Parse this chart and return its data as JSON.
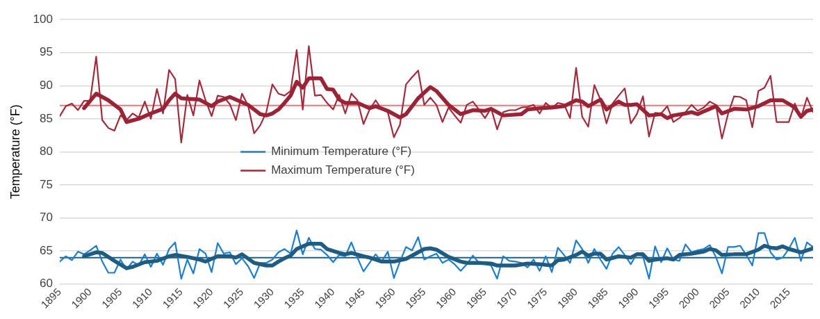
{
  "chart_data": {
    "type": "line",
    "ylabel": "Temperature (°F)",
    "x": [
      1895,
      1896,
      1897,
      1898,
      1899,
      1900,
      1901,
      1902,
      1903,
      1904,
      1905,
      1906,
      1907,
      1908,
      1909,
      1910,
      1911,
      1912,
      1913,
      1914,
      1915,
      1916,
      1917,
      1918,
      1919,
      1920,
      1921,
      1922,
      1923,
      1924,
      1925,
      1926,
      1927,
      1928,
      1929,
      1930,
      1931,
      1932,
      1933,
      1934,
      1935,
      1936,
      1937,
      1938,
      1939,
      1940,
      1941,
      1942,
      1943,
      1944,
      1945,
      1946,
      1947,
      1948,
      1949,
      1950,
      1951,
      1952,
      1953,
      1954,
      1955,
      1956,
      1957,
      1958,
      1959,
      1960,
      1961,
      1962,
      1963,
      1964,
      1965,
      1966,
      1967,
      1968,
      1969,
      1970,
      1971,
      1972,
      1973,
      1974,
      1975,
      1976,
      1977,
      1978,
      1979,
      1980,
      1981,
      1982,
      1983,
      1984,
      1985,
      1986,
      1987,
      1988,
      1989,
      1990,
      1991,
      1992,
      1993,
      1994,
      1995,
      1996,
      1997,
      1998,
      1999,
      2000,
      2001,
      2002,
      2003,
      2004,
      2005,
      2006,
      2007,
      2008,
      2009,
      2010,
      2011,
      2012,
      2013,
      2014,
      2015,
      2016,
      2017,
      2018,
      2019
    ],
    "xlim": [
      1895,
      2019
    ],
    "xticks": [
      1895,
      1900,
      1905,
      1910,
      1915,
      1920,
      1925,
      1930,
      1935,
      1940,
      1945,
      1950,
      1955,
      1960,
      1965,
      1970,
      1975,
      1980,
      1985,
      1990,
      1995,
      2000,
      2005,
      2010,
      2015
    ],
    "ylim": [
      60,
      100
    ],
    "yticks": [
      60,
      65,
      70,
      75,
      80,
      85,
      90,
      95,
      100
    ],
    "grid": "y",
    "legend": "left",
    "marker": "none",
    "line_style": "solid",
    "ref_lines": [
      {
        "axis": "y",
        "value": 87,
        "color": "#e8787a"
      },
      {
        "axis": "y",
        "value": 64,
        "color": "#1f5f7f"
      }
    ],
    "series": [
      {
        "name": "Minimum Temperature (°F)",
        "color": "#1a7fd0",
        "values": [
          63.4,
          64.2,
          63.6,
          64.9,
          64.5,
          65.1,
          65.8,
          63.4,
          61.7,
          61.7,
          63.7,
          62.2,
          63.4,
          62.8,
          64.5,
          62.6,
          64.6,
          62.9,
          65.3,
          66.3,
          60.8,
          63.7,
          61.6,
          65.3,
          64.6,
          61.8,
          66.2,
          64.6,
          64.8,
          63.0,
          63.9,
          62.7,
          60.9,
          63.2,
          63.2,
          63.7,
          64.8,
          65.3,
          64.6,
          68.1,
          64.5,
          67.0,
          65.3,
          65.2,
          64.4,
          63.3,
          64.4,
          64.2,
          66.3,
          64.0,
          61.9,
          63.2,
          64.5,
          63.4,
          64.9,
          60.9,
          63.4,
          65.6,
          65.1,
          67.1,
          63.7,
          64.2,
          64.6,
          63.2,
          63.7,
          63.0,
          62.0,
          63.0,
          64.3,
          63.2,
          63.0,
          62.8,
          60.8,
          64.2,
          63.5,
          63.4,
          63.2,
          62.5,
          63.7,
          62.0,
          64.2,
          61.8,
          65.5,
          64.4,
          63.2,
          66.6,
          65.3,
          63.2,
          65.3,
          63.7,
          62.3,
          64.6,
          65.6,
          64.4,
          63.0,
          64.6,
          64.2,
          60.8,
          65.7,
          63.3,
          65.4,
          63.7,
          63.5,
          66.0,
          64.8,
          65.1,
          65.3,
          65.9,
          64.1,
          61.6,
          65.6,
          65.6,
          65.8,
          64.4,
          62.8,
          67.7,
          67.7,
          64.8,
          63.7,
          64.0,
          65.3,
          67.0,
          63.5,
          66.3,
          65.6
        ]
      },
      {
        "name": "Maximum Temperature (°F)",
        "color": "#a4293a",
        "values": [
          85.4,
          86.9,
          87.3,
          86.3,
          87.7,
          87.7,
          94.4,
          84.8,
          83.6,
          83.2,
          85.5,
          84.8,
          85.8,
          85.2,
          87.6,
          85.0,
          89.5,
          85.8,
          92.4,
          91.0,
          81.4,
          88.6,
          85.5,
          90.8,
          87.8,
          85.4,
          88.5,
          88.3,
          87.2,
          84.8,
          88.8,
          87.0,
          82.8,
          84.0,
          86.0,
          90.2,
          88.8,
          88.5,
          89.2,
          95.4,
          86.4,
          96.0,
          88.5,
          88.6,
          87.4,
          86.4,
          88.6,
          85.8,
          88.8,
          87.8,
          84.2,
          86.4,
          87.8,
          86.4,
          86.0,
          82.2,
          84.1,
          90.2,
          91.3,
          92.3,
          87.1,
          88.2,
          87.1,
          84.5,
          86.7,
          85.5,
          84.4,
          87.1,
          87.6,
          86.4,
          85.1,
          86.6,
          83.4,
          86.0,
          86.3,
          86.3,
          86.7,
          86.8,
          87.1,
          85.8,
          87.4,
          86.6,
          87.4,
          87.2,
          85.1,
          92.7,
          85.3,
          83.8,
          90.1,
          87.9,
          84.3,
          87.3,
          88.5,
          89.6,
          84.3,
          85.7,
          88.4,
          82.3,
          85.9,
          85.8,
          86.9,
          84.5,
          85.1,
          86.0,
          87.1,
          86.2,
          86.7,
          87.6,
          87.1,
          82.0,
          85.7,
          88.4,
          88.3,
          87.8,
          83.7,
          89.2,
          89.7,
          91.5,
          84.5,
          84.5,
          84.5,
          87.3,
          85.1,
          88.2,
          86.0
        ]
      },
      {
        "color": "#1f5c82",
        "x": [
          1899,
          1901,
          1902,
          1904,
          1906,
          1907,
          1909,
          1911,
          1913,
          1914,
          1916,
          1918,
          1919,
          1921,
          1923,
          1924,
          1925,
          1927,
          1929,
          1930,
          1931,
          1932,
          1933,
          1934,
          1935,
          1936,
          1938,
          1939,
          1941,
          1942,
          1943,
          1945,
          1946,
          1948,
          1950,
          1952,
          1954,
          1955,
          1956,
          1957,
          1959,
          1961,
          1962,
          1964,
          1966,
          1967,
          1970,
          1972,
          1974,
          1976,
          1977,
          1978,
          1980,
          1981,
          1982,
          1983,
          1984,
          1985,
          1987,
          1989,
          1990,
          1991,
          1992,
          1993,
          1995,
          1996,
          1997,
          1999,
          2001,
          2002,
          2003,
          2004,
          2006,
          2008,
          2010,
          2011,
          2012,
          2013,
          2014,
          2015,
          2017,
          2019
        ],
        "values": [
          64.2,
          64.8,
          64.7,
          63.5,
          62.4,
          62.6,
          63.3,
          63.5,
          64.2,
          64.4,
          64.1,
          63.7,
          63.4,
          64.2,
          64.2,
          64.0,
          64.5,
          63.2,
          62.8,
          62.8,
          63.4,
          63.9,
          64.3,
          65.3,
          65.7,
          66.1,
          66.1,
          65.3,
          64.7,
          64.5,
          64.7,
          64.2,
          64.0,
          63.4,
          63.4,
          63.8,
          64.8,
          65.3,
          65.4,
          65.2,
          64.1,
          63.4,
          63.2,
          63.2,
          63.1,
          62.8,
          62.8,
          63.1,
          63.0,
          62.8,
          63.6,
          63.7,
          64.4,
          64.9,
          64.3,
          64.6,
          64.6,
          63.7,
          64.2,
          64.0,
          64.5,
          64.5,
          63.5,
          63.7,
          63.9,
          63.7,
          64.4,
          64.6,
          64.9,
          65.3,
          65.1,
          64.4,
          64.5,
          64.5,
          65.2,
          65.8,
          65.5,
          65.4,
          65.7,
          65.3,
          64.8,
          65.4
        ]
      },
      {
        "color": "#9b2335",
        "x": [
          1899,
          1901,
          1903,
          1905,
          1906,
          1908,
          1910,
          1912,
          1913,
          1914,
          1915,
          1918,
          1920,
          1921,
          1923,
          1926,
          1928,
          1929,
          1930,
          1931,
          1932,
          1933,
          1934,
          1935,
          1936,
          1938,
          1939,
          1940,
          1941,
          1942,
          1944,
          1946,
          1947,
          1949,
          1951,
          1952,
          1954,
          1956,
          1957,
          1959,
          1961,
          1963,
          1965,
          1966,
          1968,
          1971,
          1972,
          1974,
          1976,
          1978,
          1980,
          1981,
          1982,
          1984,
          1985,
          1987,
          1988,
          1989,
          1990,
          1992,
          1994,
          1995,
          1996,
          1998,
          1999,
          2000,
          2002,
          2003,
          2004,
          2006,
          2008,
          2010,
          2012,
          2014,
          2016,
          2017,
          2018,
          2019
        ],
        "values": [
          86.6,
          88.8,
          87.8,
          86.4,
          84.5,
          85.0,
          85.8,
          86.5,
          87.8,
          88.8,
          88.1,
          87.9,
          86.9,
          87.6,
          88.3,
          87.1,
          85.7,
          85.5,
          85.8,
          86.4,
          87.4,
          88.5,
          90.6,
          89.7,
          91.1,
          91.1,
          89.5,
          89.4,
          87.9,
          87.4,
          87.4,
          86.6,
          86.9,
          86.2,
          85.2,
          85.7,
          88.1,
          89.8,
          89.2,
          87.1,
          85.7,
          86.3,
          86.2,
          86.5,
          85.5,
          85.7,
          86.4,
          86.6,
          86.7,
          86.9,
          87.8,
          87.6,
          86.9,
          87.9,
          86.4,
          87.6,
          87.1,
          87.1,
          87.2,
          85.5,
          85.7,
          85.1,
          85.5,
          85.8,
          86.0,
          85.7,
          86.5,
          86.9,
          85.8,
          86.5,
          86.4,
          86.9,
          87.8,
          87.8,
          86.7,
          85.3,
          86.2,
          86.4
        ]
      }
    ]
  }
}
